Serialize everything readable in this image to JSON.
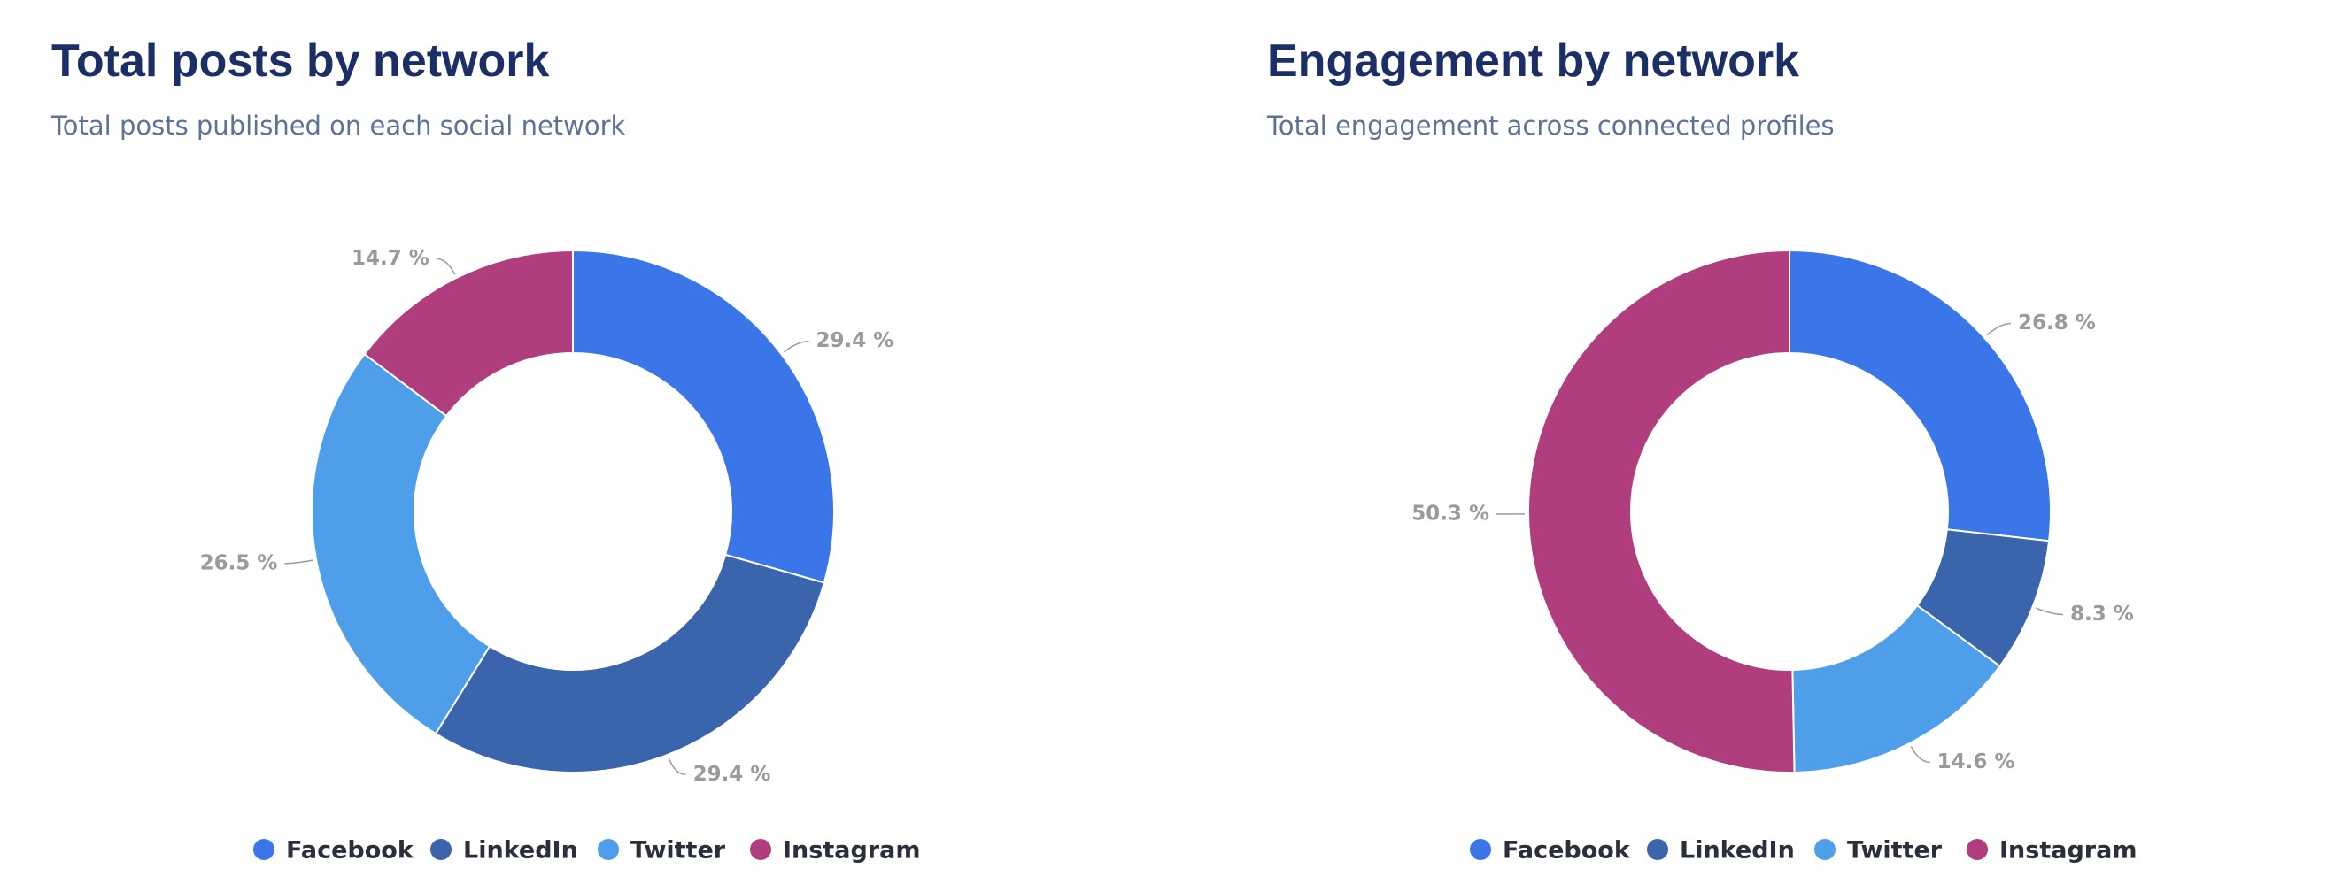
{
  "chart_data": [
    {
      "type": "donut",
      "title": "Total posts by network",
      "subtitle": "Total posts published on each social network",
      "categories": [
        "Facebook",
        "LinkedIn",
        "Twitter",
        "Instagram"
      ],
      "values": [
        29.4,
        29.4,
        26.5,
        14.7
      ],
      "value_labels": [
        "29.4 %",
        "29.4 %",
        "26.5 %",
        "14.7 %"
      ],
      "colors": [
        "#3b76e8",
        "#3a64ab",
        "#4e9ee9",
        "#b03d7e"
      ]
    },
    {
      "type": "donut",
      "title": "Engagement by network",
      "subtitle": "Total engagement across connected profiles",
      "categories": [
        "Facebook",
        "LinkedIn",
        "Twitter",
        "Instagram"
      ],
      "values": [
        26.8,
        8.3,
        14.6,
        50.3
      ],
      "value_labels": [
        "26.8 %",
        "8.3 %",
        "14.6 %",
        "50.3 %"
      ],
      "colors": [
        "#3b76e8",
        "#3a64ab",
        "#4e9ee9",
        "#b03d7e"
      ]
    }
  ]
}
